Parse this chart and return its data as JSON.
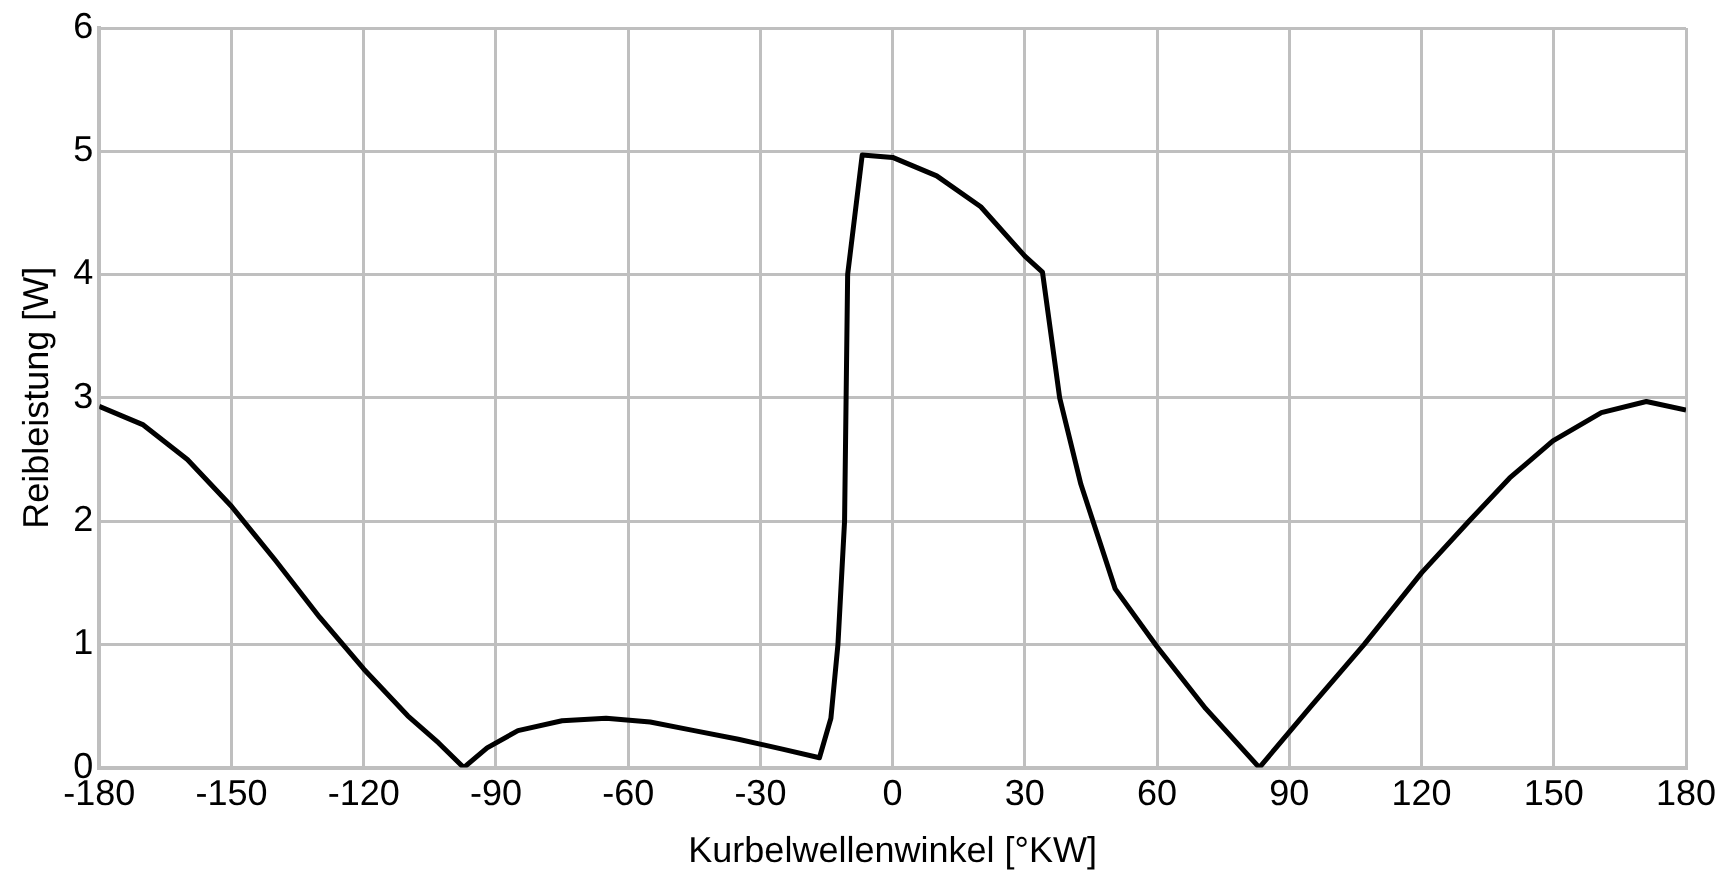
{
  "chart_data": {
    "type": "line",
    "xlabel": "Kurbelwellenwinkel [°KW]",
    "ylabel": "Reibleistung [W]",
    "xlim": [
      -180,
      180
    ],
    "xticks": [
      -180,
      -150,
      -120,
      -90,
      -60,
      -30,
      0,
      30,
      60,
      90,
      120,
      150,
      180
    ],
    "ylim": [
      0,
      6
    ],
    "yticks": [
      0,
      1,
      2,
      3,
      4,
      5,
      6
    ],
    "grid": true,
    "legend": false,
    "marker": "none",
    "line_style": "solid",
    "series": [
      {
        "color": "#000000",
        "x": [
          -180,
          -170,
          -160,
          -150,
          -140,
          -130,
          -120,
          -110,
          -103,
          -97.3,
          -92,
          -85,
          -75,
          -65,
          -55,
          -45,
          -35,
          -25,
          -16.6,
          -14,
          -12.4,
          -10.9,
          -10.2,
          -6.9,
          0,
          10,
          20,
          30,
          34,
          37.9,
          42.7,
          50.5,
          60,
          71,
          83.2,
          95,
          107,
          120,
          130.8,
          140,
          149.8,
          160.8,
          171,
          180
        ],
        "values": [
          2.93,
          2.78,
          2.5,
          2.12,
          1.68,
          1.22,
          0.8,
          0.42,
          0.2,
          0.0,
          0.16,
          0.3,
          0.38,
          0.4,
          0.37,
          0.3,
          0.23,
          0.15,
          0.08,
          0.4,
          1.0,
          2.0,
          4.0,
          4.97,
          4.95,
          4.8,
          4.55,
          4.15,
          4.02,
          3.0,
          2.3,
          1.45,
          0.98,
          0.48,
          0.0,
          0.5,
          1.0,
          1.58,
          2.0,
          2.35,
          2.65,
          2.88,
          2.97,
          2.9
        ]
      }
    ]
  }
}
